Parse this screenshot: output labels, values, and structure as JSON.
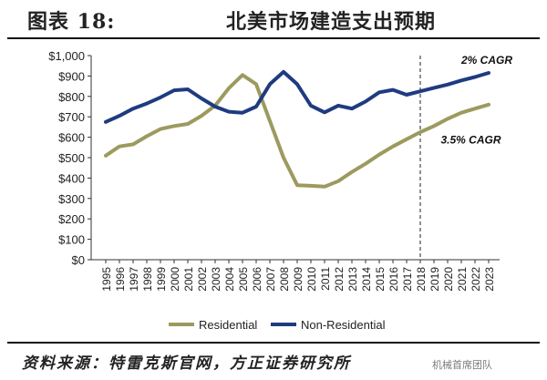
{
  "figure": {
    "title": "图表 18:",
    "subtitle": "北美市场建造支出预期",
    "source": "资料来源：特雷克斯官网，方正证券研究所",
    "watermark": "机械首席团队"
  },
  "chart_data": {
    "type": "line",
    "x": [
      1995,
      1996,
      1997,
      1998,
      1999,
      2000,
      2001,
      2002,
      2003,
      2004,
      2005,
      2006,
      2007,
      2008,
      2009,
      2010,
      2011,
      2012,
      2013,
      2014,
      2015,
      2016,
      2017,
      2018,
      2019,
      2020,
      2021,
      2022,
      2023
    ],
    "x_tick_labels": [
      "1995",
      "1996",
      "1997",
      "1998",
      "1999",
      "2000",
      "2001",
      "2002",
      "2003",
      "2004",
      "2005",
      "2006",
      "2007",
      "2008",
      "2009",
      "2010",
      "2011",
      "2012",
      "2013",
      "2014",
      "2015",
      "2016",
      "2017",
      "2018",
      "2019",
      "2020",
      "2021",
      "2022",
      "2023"
    ],
    "series": [
      {
        "name": "Residential",
        "color": "#9c9a5e",
        "values": [
          510,
          555,
          565,
          605,
          640,
          655,
          665,
          705,
          755,
          840,
          905,
          860,
          680,
          500,
          365,
          362,
          358,
          385,
          430,
          470,
          515,
          555,
          590,
          625,
          655,
          690,
          720,
          740,
          760
        ]
      },
      {
        "name": "Non-Residential",
        "color": "#1f3b80",
        "values": [
          675,
          705,
          740,
          765,
          795,
          830,
          835,
          790,
          750,
          725,
          720,
          750,
          860,
          920,
          860,
          755,
          722,
          755,
          740,
          775,
          820,
          832,
          808,
          825,
          842,
          858,
          878,
          895,
          915
        ]
      }
    ],
    "ylim": [
      0,
      1000
    ],
    "y_ticks": [
      0,
      100,
      200,
      300,
      400,
      500,
      600,
      700,
      800,
      900,
      1000
    ],
    "y_tick_labels": [
      "$0",
      "$100",
      "$200",
      "$300",
      "$400",
      "$500",
      "$600",
      "$700",
      "$800",
      "$900",
      "$1,000"
    ],
    "forecast_divider_x": 2018,
    "annotations": [
      {
        "text": "2% CAGR",
        "x": 2021.0,
        "y": 960
      },
      {
        "text": "3.5% CAGR",
        "x": 2019.5,
        "y": 570
      }
    ],
    "grid": false,
    "legend_position": "bottom"
  }
}
